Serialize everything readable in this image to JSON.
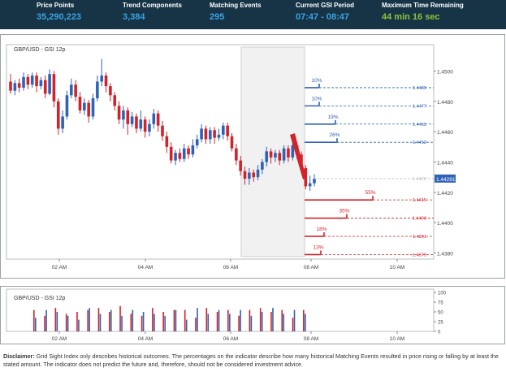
{
  "header": {
    "stats": [
      {
        "label": "Price Points",
        "value": "35,290,223"
      },
      {
        "label": "Trend Components",
        "value": "3,384"
      },
      {
        "label": "Matching Events",
        "value": "295"
      },
      {
        "label": "Current GSI Period",
        "value": "07:47 - 08:47"
      },
      {
        "label": "Maximum Time Remaining",
        "value": "44 min 16 sec"
      }
    ]
  },
  "colors": {
    "header_bg": "#163446",
    "value_blue": "#3aa3e3",
    "value_green": "#8cc43c",
    "up": "#2e63b8",
    "down": "#d2232a"
  },
  "chart": {
    "title": "GBP/USD - GSI 12p",
    "price_axis": [
      "1.4500",
      "1.4480",
      "1.4460",
      "1.4440",
      "1.4420",
      "1.4400",
      "1.4380"
    ],
    "time_axis": [
      "02 AM",
      "04 AM",
      "06 AM",
      "08 AM",
      "10 AM"
    ],
    "current_price": "1.44291",
    "current_price_faint": "1.4429",
    "up_forecasts": [
      {
        "percent": "10%",
        "level": "1.4489"
      },
      {
        "percent": "10%",
        "level": "1.4477"
      },
      {
        "percent": "19%",
        "level": "1.4465"
      },
      {
        "percent": "26%",
        "level": "1.4453"
      }
    ],
    "down_forecasts": [
      {
        "percent": "55%",
        "level": "1.4415"
      },
      {
        "percent": "35%",
        "level": "1.4403"
      },
      {
        "percent": "18%",
        "level": "1.4391"
      },
      {
        "percent": "13%",
        "level": "1.4379"
      }
    ]
  },
  "volume": {
    "title": "GBP/USD - GSI 12p",
    "axis": [
      "100",
      "75",
      "50",
      "25",
      "0"
    ],
    "time_axis": [
      "02 AM",
      "04 AM",
      "06 AM",
      "08 AM",
      "10 AM"
    ]
  },
  "chart_data": [
    {
      "type": "candlestick",
      "title": "GBP/USD - GSI 12p",
      "ylim": [
        1.4376,
        1.4512
      ],
      "x_ticks": [
        "02 AM",
        "04 AM",
        "06 AM",
        "08 AM",
        "10 AM"
      ],
      "candles": [
        [
          1.4493,
          1.4487,
          1.4498,
          1.4485
        ],
        [
          1.4487,
          1.4492,
          1.4494,
          1.4484
        ],
        [
          1.4492,
          1.4489,
          1.4495,
          1.4486
        ],
        [
          1.4489,
          1.4496,
          1.4499,
          1.4487
        ],
        [
          1.4496,
          1.4491,
          1.4498,
          1.4488
        ],
        [
          1.4491,
          1.4497,
          1.4499,
          1.4489
        ],
        [
          1.4497,
          1.449,
          1.4499,
          1.4486
        ],
        [
          1.449,
          1.4494,
          1.4496,
          1.4488
        ],
        [
          1.4494,
          1.4485,
          1.4497,
          1.4482
        ],
        [
          1.4485,
          1.4498,
          1.4501,
          1.4484
        ],
        [
          1.4498,
          1.448,
          1.45,
          1.4476
        ],
        [
          1.448,
          1.4462,
          1.4482,
          1.4458
        ],
        [
          1.4462,
          1.447,
          1.4474,
          1.4459
        ],
        [
          1.447,
          1.4484,
          1.4487,
          1.4468
        ],
        [
          1.4484,
          1.4491,
          1.4495,
          1.4482
        ],
        [
          1.4491,
          1.4483,
          1.4494,
          1.448
        ],
        [
          1.4483,
          1.4474,
          1.4486,
          1.4472
        ],
        [
          1.4474,
          1.4479,
          1.4482,
          1.4471
        ],
        [
          1.4479,
          1.447,
          1.4481,
          1.4466
        ],
        [
          1.447,
          1.4482,
          1.4485,
          1.4468
        ],
        [
          1.4482,
          1.4493,
          1.4497,
          1.448
        ],
        [
          1.4493,
          1.4497,
          1.4508,
          1.449
        ],
        [
          1.4497,
          1.449,
          1.4499,
          1.4486
        ],
        [
          1.449,
          1.4484,
          1.4492,
          1.448
        ],
        [
          1.4484,
          1.4477,
          1.4486,
          1.4474
        ],
        [
          1.4477,
          1.4468,
          1.448,
          1.4465
        ],
        [
          1.4468,
          1.4474,
          1.4477,
          1.4462
        ],
        [
          1.4474,
          1.4465,
          1.4476,
          1.4458
        ],
        [
          1.4465,
          1.447,
          1.4473,
          1.4463
        ],
        [
          1.447,
          1.4462,
          1.4472,
          1.4459
        ],
        [
          1.4462,
          1.4468,
          1.4474,
          1.446
        ],
        [
          1.4468,
          1.446,
          1.447,
          1.4456
        ],
        [
          1.446,
          1.4465,
          1.4468,
          1.4457
        ],
        [
          1.4465,
          1.4472,
          1.4475,
          1.4462
        ],
        [
          1.4472,
          1.4464,
          1.4474,
          1.446
        ],
        [
          1.4464,
          1.4457,
          1.4467,
          1.4454
        ],
        [
          1.4457,
          1.445,
          1.446,
          1.4446
        ],
        [
          1.445,
          1.4441,
          1.4453,
          1.4439
        ],
        [
          1.4441,
          1.4446,
          1.4448,
          1.4438
        ],
        [
          1.4446,
          1.4442,
          1.4449,
          1.444
        ],
        [
          1.4442,
          1.4449,
          1.4452,
          1.444
        ],
        [
          1.4449,
          1.4445,
          1.4451,
          1.4442
        ],
        [
          1.4445,
          1.4451,
          1.4455,
          1.4443
        ],
        [
          1.4451,
          1.4455,
          1.4458,
          1.4449
        ],
        [
          1.4455,
          1.4462,
          1.4465,
          1.4453
        ],
        [
          1.4462,
          1.4455,
          1.4464,
          1.4452
        ],
        [
          1.4455,
          1.4461,
          1.4463,
          1.4452
        ],
        [
          1.4461,
          1.4456,
          1.4463,
          1.4452
        ],
        [
          1.4456,
          1.4458,
          1.4462,
          1.4454
        ],
        [
          1.4458,
          1.4464,
          1.4466,
          1.4455
        ],
        [
          1.4464,
          1.4457,
          1.4466,
          1.4454
        ],
        [
          1.4457,
          1.4449,
          1.4459,
          1.4447
        ],
        [
          1.4449,
          1.4441,
          1.4452,
          1.4438
        ],
        [
          1.4441,
          1.4434,
          1.4444,
          1.4431
        ],
        [
          1.4434,
          1.4429,
          1.4437,
          1.4425
        ],
        [
          1.4429,
          1.4433,
          1.4436,
          1.4425
        ],
        [
          1.4433,
          1.443,
          1.4435,
          1.4427
        ],
        [
          1.443,
          1.4435,
          1.4438,
          1.4428
        ],
        [
          1.4435,
          1.444,
          1.4442,
          1.4432
        ],
        [
          1.444,
          1.4447,
          1.445,
          1.4437
        ],
        [
          1.4447,
          1.4443,
          1.4449,
          1.4439
        ],
        [
          1.4443,
          1.4446,
          1.4448,
          1.444
        ],
        [
          1.4446,
          1.4441,
          1.4448,
          1.4438
        ],
        [
          1.4441,
          1.4449,
          1.4451,
          1.4439
        ],
        [
          1.4449,
          1.4443,
          1.4451,
          1.444
        ],
        [
          1.4443,
          1.4451,
          1.4453,
          1.4441
        ],
        [
          1.4451,
          1.4445,
          1.4453,
          1.4442
        ],
        [
          1.4445,
          1.4436,
          1.4447,
          1.4433
        ],
        [
          1.4436,
          1.4424,
          1.4438,
          1.4422
        ],
        [
          1.4424,
          1.4426,
          1.4431,
          1.4421
        ],
        [
          1.4426,
          1.4429,
          1.4432,
          1.4424
        ]
      ]
    },
    {
      "type": "bar",
      "title": "GBP/USD - GSI 12p",
      "ylim": [
        0,
        100
      ],
      "x_ticks": [
        "02 AM",
        "04 AM",
        "06 AM",
        "08 AM",
        "10 AM"
      ],
      "series": [
        {
          "values": [
            55,
            40,
            60,
            45,
            50,
            55,
            60,
            50,
            65,
            45,
            40,
            60,
            50,
            55,
            55,
            35,
            60,
            50,
            55,
            40,
            55,
            60,
            50,
            55,
            35,
            55
          ]
        },
        {
          "values": [
            35,
            55,
            50,
            40,
            30,
            60,
            45,
            55,
            40,
            55,
            50,
            45,
            40,
            55,
            30,
            60,
            45,
            55,
            45,
            55,
            40,
            50,
            60,
            45,
            55,
            45
          ]
        }
      ]
    }
  ]
}
